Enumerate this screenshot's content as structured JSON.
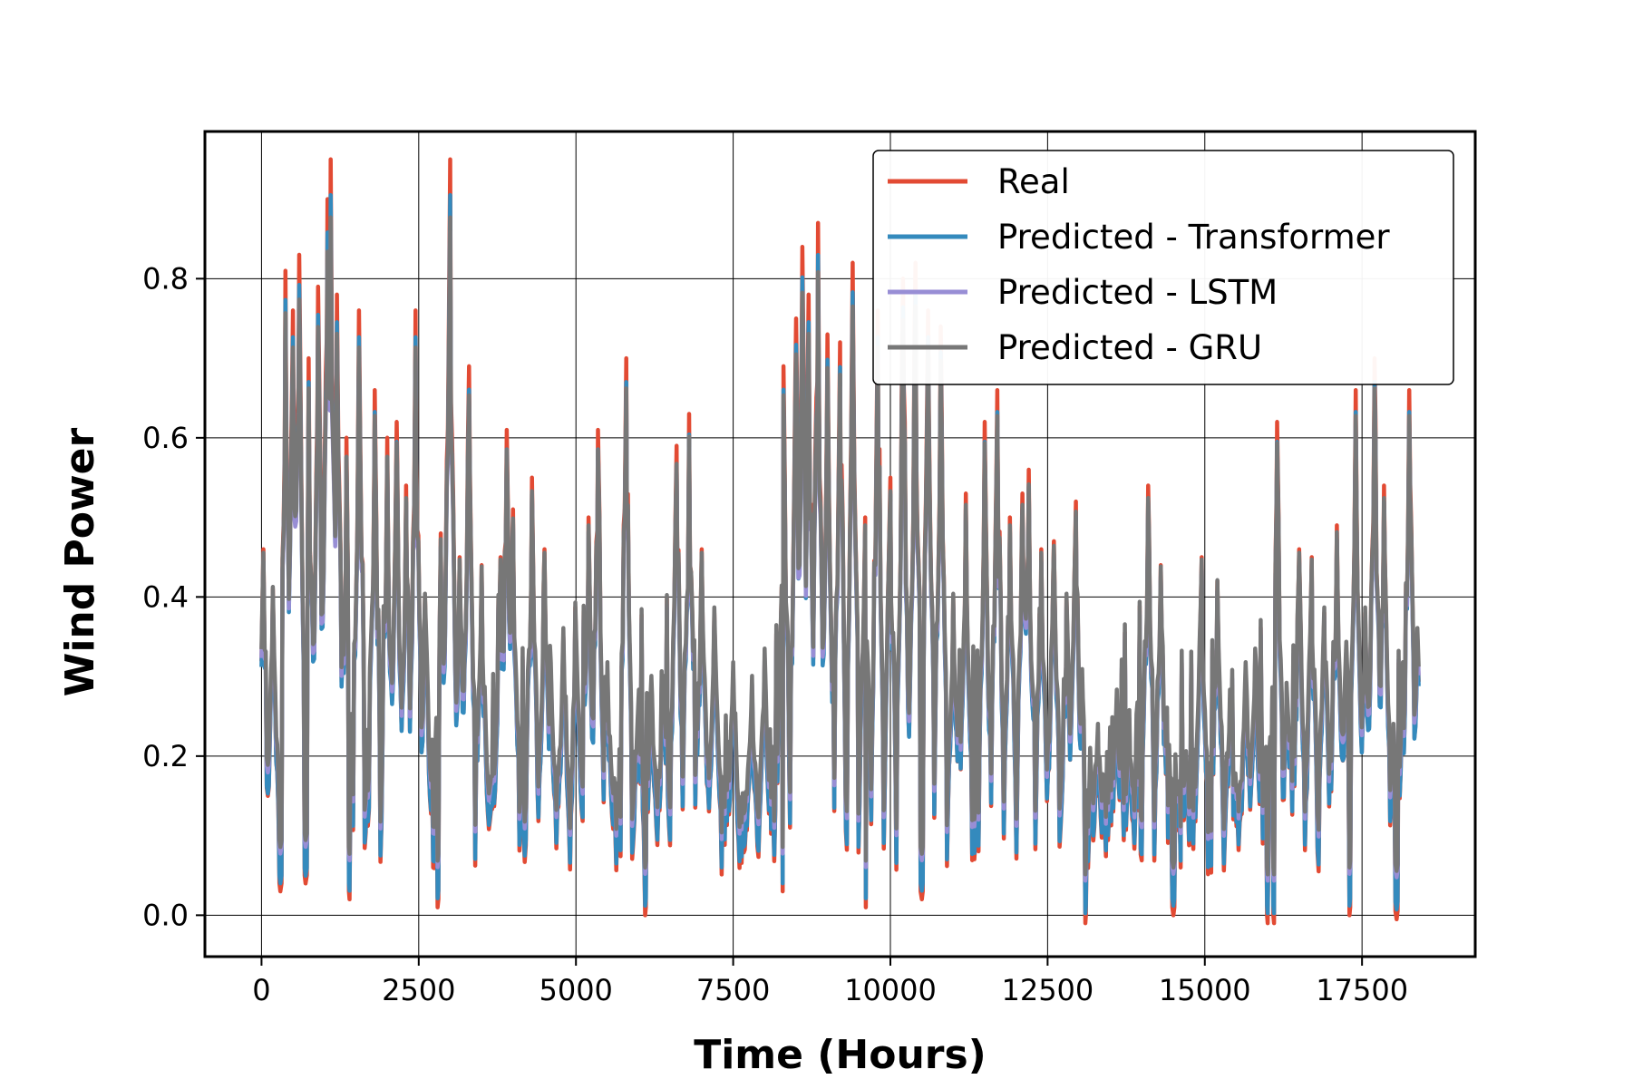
{
  "chart_data": {
    "type": "line",
    "xlabel": "Time (Hours)",
    "ylabel": "Wind Power",
    "xlim": [
      -900,
      19300
    ],
    "ylim": [
      -0.052,
      0.985
    ],
    "xticks": [
      0,
      2500,
      5000,
      7500,
      10000,
      12500,
      15000,
      17500
    ],
    "yticks": [
      0.0,
      0.2,
      0.4,
      0.6,
      0.8
    ],
    "ytick_labels": [
      "0.0",
      "0.2",
      "0.4",
      "0.6",
      "0.8"
    ],
    "grid": true,
    "legend_position": "top-right",
    "x_start": 0,
    "x_end": 18400,
    "series": [
      {
        "name": "Real",
        "color": "#e24a33"
      },
      {
        "name": "Predicted - Transformer",
        "color": "#348abd"
      },
      {
        "name": "Predicted - LSTM",
        "color": "#988ed5"
      },
      {
        "name": "Predicted - GRU",
        "color": "#777777"
      }
    ],
    "peaks": [
      {
        "x": 30,
        "y": 0.46
      },
      {
        "x": 180,
        "y": 0.41
      },
      {
        "x": 380,
        "y": 0.81
      },
      {
        "x": 500,
        "y": 0.76
      },
      {
        "x": 600,
        "y": 0.83
      },
      {
        "x": 750,
        "y": 0.7
      },
      {
        "x": 900,
        "y": 0.79
      },
      {
        "x": 1050,
        "y": 0.9
      },
      {
        "x": 1100,
        "y": 0.95
      },
      {
        "x": 1200,
        "y": 0.78
      },
      {
        "x": 1350,
        "y": 0.6
      },
      {
        "x": 1550,
        "y": 0.76
      },
      {
        "x": 1800,
        "y": 0.66
      },
      {
        "x": 2000,
        "y": 0.6
      },
      {
        "x": 2150,
        "y": 0.62
      },
      {
        "x": 2300,
        "y": 0.54
      },
      {
        "x": 2450,
        "y": 0.76
      },
      {
        "x": 2600,
        "y": 0.4
      },
      {
        "x": 2850,
        "y": 0.48
      },
      {
        "x": 3000,
        "y": 0.95
      },
      {
        "x": 3150,
        "y": 0.45
      },
      {
        "x": 3300,
        "y": 0.69
      },
      {
        "x": 3500,
        "y": 0.44
      },
      {
        "x": 3800,
        "y": 0.45
      },
      {
        "x": 3900,
        "y": 0.61
      },
      {
        "x": 4000,
        "y": 0.51
      },
      {
        "x": 4300,
        "y": 0.55
      },
      {
        "x": 4500,
        "y": 0.46
      },
      {
        "x": 4600,
        "y": 0.3
      },
      {
        "x": 4800,
        "y": 0.35
      },
      {
        "x": 5000,
        "y": 0.35
      },
      {
        "x": 5200,
        "y": 0.5
      },
      {
        "x": 5350,
        "y": 0.61
      },
      {
        "x": 5500,
        "y": 0.3
      },
      {
        "x": 5800,
        "y": 0.7
      },
      {
        "x": 6000,
        "y": 0.26
      },
      {
        "x": 6200,
        "y": 0.28
      },
      {
        "x": 6400,
        "y": 0.28
      },
      {
        "x": 6600,
        "y": 0.59
      },
      {
        "x": 6800,
        "y": 0.63
      },
      {
        "x": 7000,
        "y": 0.46
      },
      {
        "x": 7200,
        "y": 0.38
      },
      {
        "x": 7500,
        "y": 0.3
      },
      {
        "x": 7800,
        "y": 0.28
      },
      {
        "x": 8000,
        "y": 0.32
      },
      {
        "x": 8300,
        "y": 0.69
      },
      {
        "x": 8500,
        "y": 0.75
      },
      {
        "x": 8600,
        "y": 0.84
      },
      {
        "x": 8700,
        "y": 0.78
      },
      {
        "x": 8850,
        "y": 0.87
      },
      {
        "x": 9000,
        "y": 0.73
      },
      {
        "x": 9200,
        "y": 0.72
      },
      {
        "x": 9400,
        "y": 0.82
      },
      {
        "x": 9600,
        "y": 0.5
      },
      {
        "x": 9800,
        "y": 0.76
      },
      {
        "x": 10000,
        "y": 0.55
      },
      {
        "x": 10200,
        "y": 0.8
      },
      {
        "x": 10400,
        "y": 0.82
      },
      {
        "x": 10600,
        "y": 0.76
      },
      {
        "x": 10800,
        "y": 0.74
      },
      {
        "x": 11000,
        "y": 0.4
      },
      {
        "x": 11200,
        "y": 0.53
      },
      {
        "x": 11500,
        "y": 0.62
      },
      {
        "x": 11700,
        "y": 0.66
      },
      {
        "x": 11900,
        "y": 0.5
      },
      {
        "x": 12100,
        "y": 0.53
      },
      {
        "x": 12200,
        "y": 0.56
      },
      {
        "x": 12400,
        "y": 0.46
      },
      {
        "x": 12600,
        "y": 0.47
      },
      {
        "x": 12800,
        "y": 0.4
      },
      {
        "x": 12950,
        "y": 0.52
      },
      {
        "x": 13050,
        "y": 0.29
      },
      {
        "x": 13300,
        "y": 0.21
      },
      {
        "x": 13600,
        "y": 0.26
      },
      {
        "x": 13800,
        "y": 0.23
      },
      {
        "x": 14100,
        "y": 0.54
      },
      {
        "x": 14300,
        "y": 0.44
      },
      {
        "x": 14500,
        "y": 0.23
      },
      {
        "x": 14700,
        "y": 0.17
      },
      {
        "x": 14950,
        "y": 0.45
      },
      {
        "x": 15200,
        "y": 0.42
      },
      {
        "x": 15400,
        "y": 0.26
      },
      {
        "x": 15650,
        "y": 0.3
      },
      {
        "x": 15800,
        "y": 0.32
      },
      {
        "x": 16000,
        "y": 0.26
      },
      {
        "x": 16150,
        "y": 0.62
      },
      {
        "x": 16300,
        "y": 0.27
      },
      {
        "x": 16500,
        "y": 0.46
      },
      {
        "x": 16700,
        "y": 0.45
      },
      {
        "x": 16900,
        "y": 0.38
      },
      {
        "x": 17100,
        "y": 0.49
      },
      {
        "x": 17250,
        "y": 0.33
      },
      {
        "x": 17400,
        "y": 0.66
      },
      {
        "x": 17550,
        "y": 0.38
      },
      {
        "x": 17700,
        "y": 0.7
      },
      {
        "x": 17850,
        "y": 0.54
      },
      {
        "x": 18000,
        "y": 0.21
      },
      {
        "x": 18150,
        "y": 0.3
      },
      {
        "x": 18250,
        "y": 0.66
      },
      {
        "x": 18380,
        "y": 0.35
      }
    ],
    "troughs": [
      {
        "x": 100,
        "y": 0.15
      },
      {
        "x": 300,
        "y": 0.03
      },
      {
        "x": 700,
        "y": 0.04
      },
      {
        "x": 1400,
        "y": 0.02
      },
      {
        "x": 2800,
        "y": 0.01
      },
      {
        "x": 6100,
        "y": 0.0
      },
      {
        "x": 8300,
        "y": 0.02
      },
      {
        "x": 9600,
        "y": 0.0
      },
      {
        "x": 10500,
        "y": 0.02
      },
      {
        "x": 13100,
        "y": -0.01
      },
      {
        "x": 14500,
        "y": 0.0
      },
      {
        "x": 16000,
        "y": -0.01
      },
      {
        "x": 16100,
        "y": -0.01
      },
      {
        "x": 17300,
        "y": 0.0
      },
      {
        "x": 18050,
        "y": -0.005
      }
    ]
  }
}
